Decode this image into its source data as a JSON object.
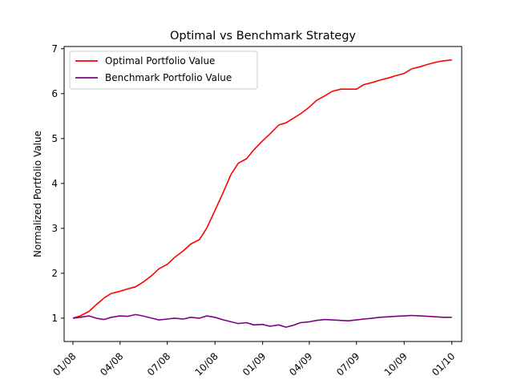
{
  "chart_data": {
    "type": "line",
    "title": "Optimal vs Benchmark Strategy",
    "xlabel": "",
    "ylabel": "Normalized Portfolio Value",
    "x_ticks": [
      "01/08",
      "04/08",
      "07/08",
      "10/08",
      "01/09",
      "04/09",
      "07/09",
      "10/09",
      "01/10"
    ],
    "y_ticks": [
      "1",
      "2",
      "3",
      "4",
      "5",
      "6",
      "7"
    ],
    "ylim": [
      0.48,
      7.05
    ],
    "x_range": [
      "2007-12-15",
      "2010-01-20"
    ],
    "grid": false,
    "legend_position": "top-left",
    "series": [
      {
        "name": "Optimal Portfolio Value",
        "color": "#ff0000",
        "x": [
          "2008-01-01",
          "2008-01-15",
          "2008-02-01",
          "2008-02-15",
          "2008-03-01",
          "2008-03-15",
          "2008-04-01",
          "2008-04-15",
          "2008-05-01",
          "2008-05-15",
          "2008-06-01",
          "2008-06-15",
          "2008-07-01",
          "2008-07-15",
          "2008-08-01",
          "2008-08-15",
          "2008-09-01",
          "2008-09-15",
          "2008-10-01",
          "2008-10-15",
          "2008-11-01",
          "2008-11-15",
          "2008-12-01",
          "2008-12-15",
          "2009-01-01",
          "2009-01-15",
          "2009-02-01",
          "2009-02-15",
          "2009-03-01",
          "2009-03-15",
          "2009-04-01",
          "2009-04-15",
          "2009-05-01",
          "2009-05-15",
          "2009-06-01",
          "2009-06-15",
          "2009-07-01",
          "2009-07-15",
          "2009-08-01",
          "2009-08-15",
          "2009-09-01",
          "2009-09-15",
          "2009-10-01",
          "2009-10-15",
          "2009-11-01",
          "2009-11-15",
          "2009-12-01",
          "2009-12-15",
          "2010-01-01"
        ],
        "values": [
          1.0,
          1.05,
          1.15,
          1.3,
          1.45,
          1.55,
          1.6,
          1.65,
          1.7,
          1.8,
          1.95,
          2.1,
          2.2,
          2.35,
          2.5,
          2.65,
          2.75,
          3.0,
          3.4,
          3.75,
          4.2,
          4.45,
          4.55,
          4.75,
          4.95,
          5.1,
          5.3,
          5.35,
          5.45,
          5.55,
          5.7,
          5.85,
          5.95,
          6.05,
          6.1,
          6.1,
          6.1,
          6.2,
          6.25,
          6.3,
          6.35,
          6.4,
          6.45,
          6.55,
          6.6,
          6.65,
          6.7,
          6.73,
          6.75
        ]
      },
      {
        "name": "Benchmark Portfolio Value",
        "color": "#800080",
        "x": [
          "2008-01-01",
          "2008-01-15",
          "2008-02-01",
          "2008-02-15",
          "2008-03-01",
          "2008-03-15",
          "2008-04-01",
          "2008-04-15",
          "2008-05-01",
          "2008-05-15",
          "2008-06-01",
          "2008-06-15",
          "2008-07-01",
          "2008-07-15",
          "2008-08-01",
          "2008-08-15",
          "2008-09-01",
          "2008-09-15",
          "2008-10-01",
          "2008-10-15",
          "2008-11-01",
          "2008-11-15",
          "2008-12-01",
          "2008-12-15",
          "2009-01-01",
          "2009-01-15",
          "2009-02-01",
          "2009-02-15",
          "2009-03-01",
          "2009-03-15",
          "2009-04-01",
          "2009-04-15",
          "2009-05-01",
          "2009-05-15",
          "2009-06-01",
          "2009-06-15",
          "2009-07-01",
          "2009-07-15",
          "2009-08-01",
          "2009-08-15",
          "2009-09-01",
          "2009-09-15",
          "2009-10-01",
          "2009-10-15",
          "2009-11-01",
          "2009-11-15",
          "2009-12-01",
          "2009-12-15",
          "2010-01-01"
        ],
        "values": [
          1.0,
          1.02,
          1.05,
          1.0,
          0.97,
          1.02,
          1.05,
          1.04,
          1.08,
          1.05,
          1.0,
          0.96,
          0.98,
          1.0,
          0.98,
          1.02,
          1.0,
          1.05,
          1.02,
          0.97,
          0.92,
          0.88,
          0.9,
          0.85,
          0.86,
          0.82,
          0.85,
          0.8,
          0.84,
          0.9,
          0.92,
          0.95,
          0.97,
          0.96,
          0.95,
          0.94,
          0.96,
          0.98,
          1.0,
          1.02,
          1.03,
          1.04,
          1.05,
          1.06,
          1.05,
          1.04,
          1.03,
          1.02,
          1.02
        ]
      }
    ]
  }
}
